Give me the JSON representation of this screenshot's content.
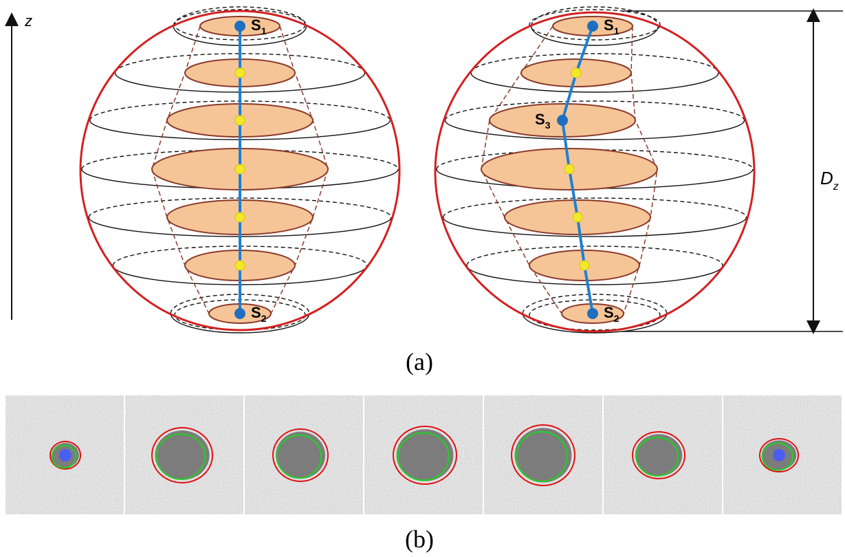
{
  "figure": {
    "axis_label": "z",
    "panel_a": {
      "caption": "(a)",
      "left_labels": [
        {
          "base": "S",
          "sub": "1"
        },
        {
          "base": "S",
          "sub": "2"
        }
      ],
      "right_labels": [
        {
          "base": "S",
          "sub": "1"
        },
        {
          "base": "S",
          "sub": "3"
        },
        {
          "base": "S",
          "sub": "2"
        }
      ],
      "dimension_label": {
        "base": "D",
        "sub": "z"
      }
    },
    "panel_b": {
      "caption": "(b)"
    }
  }
}
